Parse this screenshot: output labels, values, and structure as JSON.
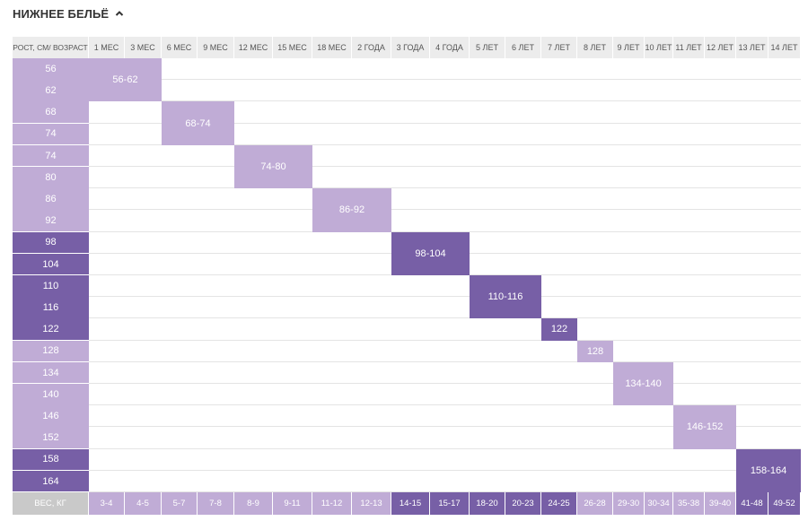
{
  "section": {
    "title": "НИЖНЕЕ БЕЛЬЁ",
    "toggle_icon": "chevron-up-icon"
  },
  "colors": {
    "light": "#c0acd6",
    "dark": "#775fa6",
    "header_bg": "#ececec",
    "header_text": "#555555",
    "weight_label_bg": "#c9c9c9",
    "grid_line": "#e4e4e4"
  },
  "table": {
    "corner_label": "РОСТ, СМ/ ВОЗРАСТ",
    "ages": [
      "1 МЕС",
      "3 МЕС",
      "6 МЕС",
      "9 МЕС",
      "12 МЕС",
      "15 МЕС",
      "18 МЕС",
      "2 ГОДА",
      "3 ГОДА",
      "4 ГОДА",
      "5 ЛЕТ",
      "6 ЛЕТ",
      "7 ЛЕТ",
      "8 ЛЕТ",
      "9 ЛЕТ",
      "10 ЛЕТ",
      "11 ЛЕТ",
      "12 ЛЕТ",
      "13 ЛЕТ",
      "14 ЛЕТ"
    ],
    "heights": [
      {
        "label": "56",
        "tone": "light"
      },
      {
        "label": "62",
        "tone": "light"
      },
      {
        "label": "68",
        "tone": "light"
      },
      {
        "label": "74",
        "tone": "light"
      },
      {
        "label": "74",
        "tone": "light"
      },
      {
        "label": "80",
        "tone": "light"
      },
      {
        "label": "86",
        "tone": "light"
      },
      {
        "label": "92",
        "tone": "light"
      },
      {
        "label": "98",
        "tone": "dark"
      },
      {
        "label": "104",
        "tone": "dark"
      },
      {
        "label": "110",
        "tone": "dark"
      },
      {
        "label": "116",
        "tone": "dark"
      },
      {
        "label": "122",
        "tone": "dark"
      },
      {
        "label": "128",
        "tone": "light"
      },
      {
        "label": "134",
        "tone": "light"
      },
      {
        "label": "140",
        "tone": "light"
      },
      {
        "label": "146",
        "tone": "light"
      },
      {
        "label": "152",
        "tone": "light"
      },
      {
        "label": "158",
        "tone": "dark"
      },
      {
        "label": "164",
        "tone": "dark"
      }
    ],
    "weight_label": "ВЕС, КГ",
    "weights": [
      {
        "label": "3-4",
        "tone": "light"
      },
      {
        "label": "4-5",
        "tone": "light"
      },
      {
        "label": "5-7",
        "tone": "light"
      },
      {
        "label": "7-8",
        "tone": "light"
      },
      {
        "label": "8-9",
        "tone": "light"
      },
      {
        "label": "9-11",
        "tone": "light"
      },
      {
        "label": "11-12",
        "tone": "light"
      },
      {
        "label": "12-13",
        "tone": "light"
      },
      {
        "label": "14-15",
        "tone": "dark"
      },
      {
        "label": "15-17",
        "tone": "dark"
      },
      {
        "label": "18-20",
        "tone": "dark"
      },
      {
        "label": "20-23",
        "tone": "dark"
      },
      {
        "label": "24-25",
        "tone": "dark"
      },
      {
        "label": "26-28",
        "tone": "light"
      },
      {
        "label": "29-30",
        "tone": "light"
      },
      {
        "label": "30-34",
        "tone": "light"
      },
      {
        "label": "35-38",
        "tone": "light"
      },
      {
        "label": "39-40",
        "tone": "light"
      },
      {
        "label": "41-48",
        "tone": "dark"
      },
      {
        "label": "49-52",
        "tone": "dark"
      }
    ],
    "sizes": [
      {
        "label": "56-62",
        "tone": "light",
        "rows": [
          0,
          1
        ],
        "cols": [
          0,
          1
        ]
      },
      {
        "label": "68-74",
        "tone": "light",
        "rows": [
          2,
          3
        ],
        "cols": [
          2,
          3
        ]
      },
      {
        "label": "74-80",
        "tone": "light",
        "rows": [
          4,
          5
        ],
        "cols": [
          4,
          5
        ]
      },
      {
        "label": "86-92",
        "tone": "light",
        "rows": [
          6,
          7
        ],
        "cols": [
          6,
          7
        ]
      },
      {
        "label": "98-104",
        "tone": "dark",
        "rows": [
          8,
          9
        ],
        "cols": [
          8,
          9
        ]
      },
      {
        "label": "110-116",
        "tone": "dark",
        "rows": [
          10,
          11
        ],
        "cols": [
          10,
          11
        ]
      },
      {
        "label": "122",
        "tone": "dark",
        "rows": [
          12,
          12
        ],
        "cols": [
          12,
          12
        ]
      },
      {
        "label": "128",
        "tone": "light",
        "rows": [
          13,
          13
        ],
        "cols": [
          13,
          13
        ]
      },
      {
        "label": "134-140",
        "tone": "light",
        "rows": [
          14,
          15
        ],
        "cols": [
          14,
          15
        ]
      },
      {
        "label": "146-152",
        "tone": "light",
        "rows": [
          16,
          17
        ],
        "cols": [
          16,
          17
        ]
      },
      {
        "label": "158-164",
        "tone": "dark",
        "rows": [
          18,
          19
        ],
        "cols": [
          18,
          19
        ]
      }
    ]
  }
}
